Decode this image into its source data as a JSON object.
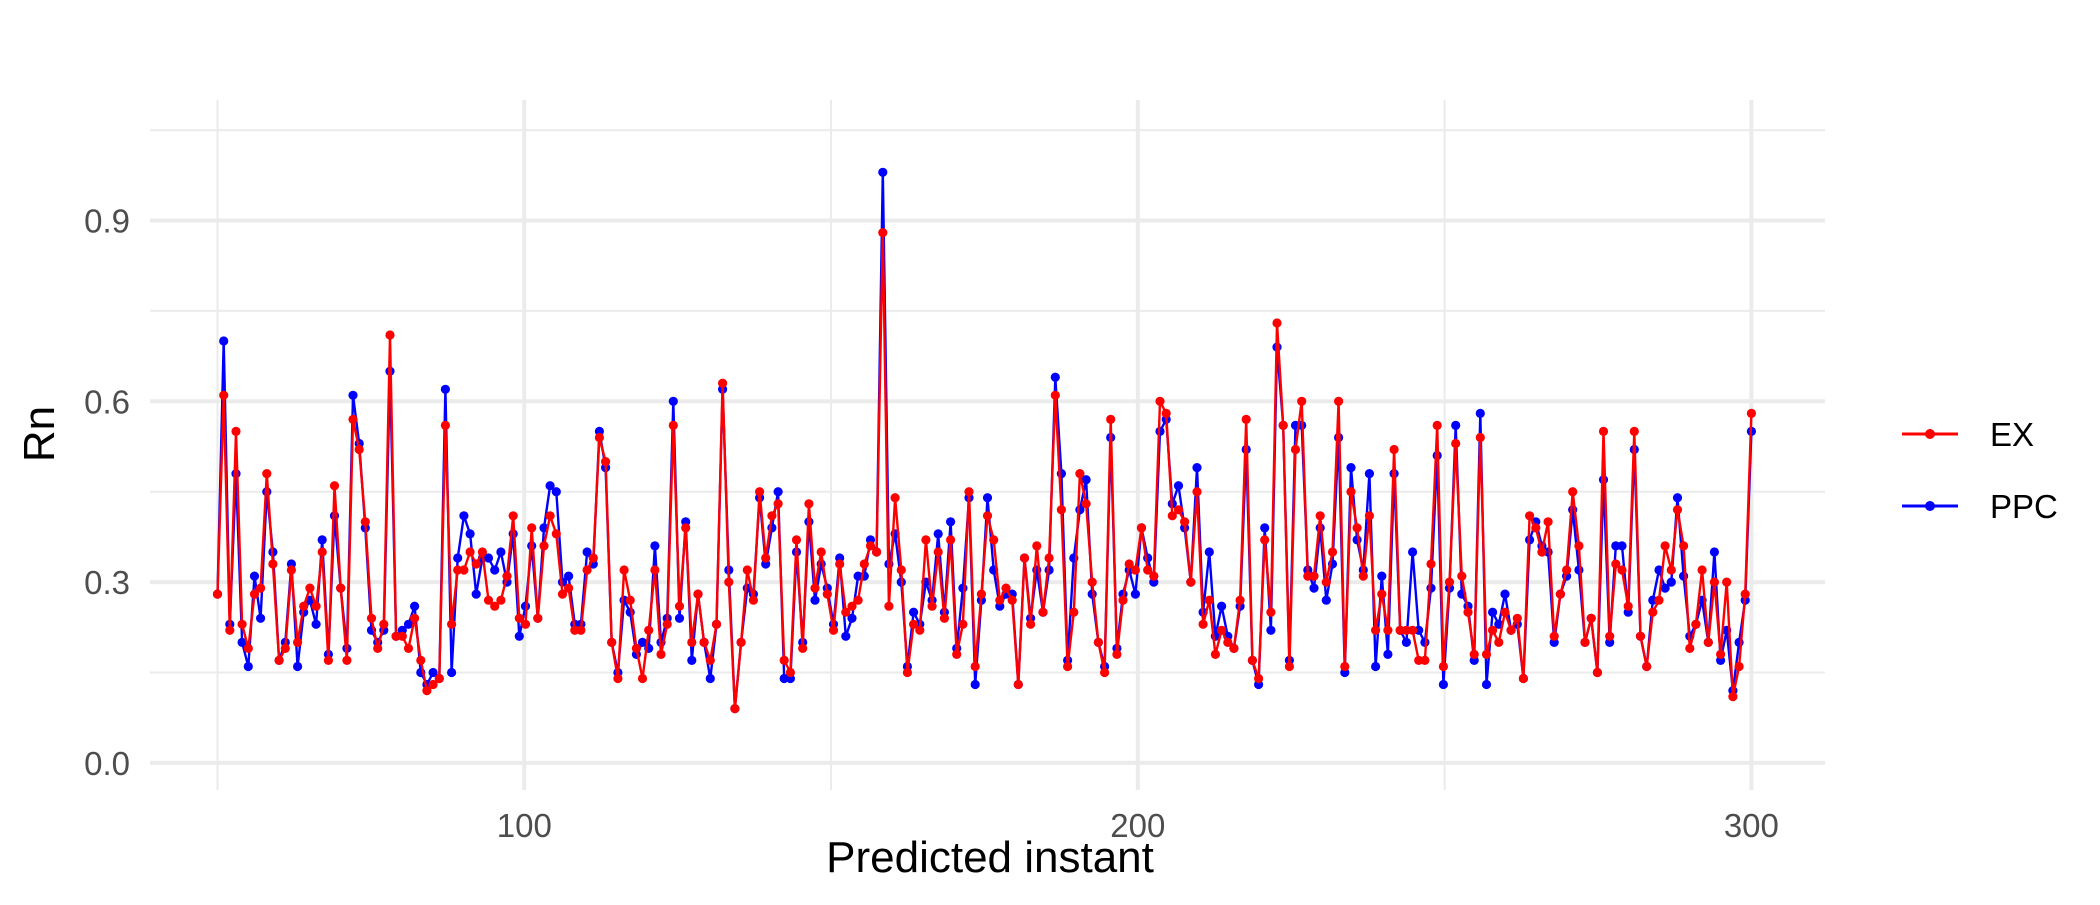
{
  "chart_data": {
    "type": "line",
    "xlabel": "Predicted instant",
    "ylabel": "Rn",
    "xlim": [
      39,
      312
    ],
    "ylim": [
      -0.045,
      1.1
    ],
    "x_ticks": [
      100,
      200,
      300
    ],
    "x_tick_labels": [
      "100",
      "200",
      "300"
    ],
    "y_ticks": [
      0.0,
      0.3,
      0.6,
      0.9
    ],
    "y_tick_labels": [
      "0.0",
      "0.3",
      "0.6",
      "0.9"
    ],
    "grid": true,
    "legend_position": "right",
    "x_start": 50,
    "x_end": 300,
    "series": [
      {
        "name": "EX",
        "color": "#ff0000",
        "values": [
          0.28,
          0.61,
          0.22,
          0.55,
          0.23,
          0.19,
          0.28,
          0.29,
          0.48,
          0.33,
          0.17,
          0.19,
          0.32,
          0.2,
          0.26,
          0.29,
          0.26,
          0.35,
          0.17,
          0.46,
          0.29,
          0.17,
          0.57,
          0.52,
          0.4,
          0.24,
          0.19,
          0.23,
          0.71,
          0.21,
          0.21,
          0.19,
          0.24,
          0.17,
          0.12,
          0.13,
          0.14,
          0.56,
          0.23,
          0.32,
          0.32,
          0.35,
          0.33,
          0.35,
          0.27,
          0.26,
          0.27,
          0.31,
          0.41,
          0.24,
          0.23,
          0.39,
          0.24,
          0.36,
          0.41,
          0.38,
          0.28,
          0.29,
          0.22,
          0.22,
          0.32,
          0.34,
          0.54,
          0.5,
          0.2,
          0.14,
          0.32,
          0.27,
          0.19,
          0.14,
          0.22,
          0.32,
          0.18,
          0.23,
          0.56,
          0.26,
          0.39,
          0.2,
          0.28,
          0.2,
          0.17,
          0.23,
          0.63,
          0.3,
          0.09,
          0.2,
          0.32,
          0.27,
          0.45,
          0.34,
          0.41,
          0.43,
          0.17,
          0.15,
          0.37,
          0.19,
          0.43,
          0.29,
          0.35,
          0.28,
          0.22,
          0.33,
          0.25,
          0.26,
          0.27,
          0.33,
          0.36,
          0.35,
          0.88,
          0.26,
          0.44,
          0.32,
          0.15,
          0.23,
          0.22,
          0.37,
          0.26,
          0.35,
          0.24,
          0.37,
          0.18,
          0.23,
          0.45,
          0.16,
          0.28,
          0.41,
          0.37,
          0.27,
          0.29,
          0.27,
          0.13,
          0.34,
          0.23,
          0.36,
          0.25,
          0.34,
          0.61,
          0.42,
          0.16,
          0.25,
          0.48,
          0.43,
          0.3,
          0.2,
          0.15,
          0.57,
          0.18,
          0.27,
          0.33,
          0.32,
          0.39,
          0.32,
          0.31,
          0.6,
          0.58,
          0.41,
          0.42,
          0.4,
          0.3,
          0.45,
          0.23,
          0.27,
          0.18,
          0.22,
          0.2,
          0.19,
          0.27,
          0.57,
          0.17,
          0.14,
          0.37,
          0.25,
          0.73,
          0.56,
          0.16,
          0.52,
          0.6,
          0.31,
          0.31,
          0.41,
          0.3,
          0.35,
          0.6,
          0.16,
          0.45,
          0.39,
          0.31,
          0.41,
          0.22,
          0.28,
          0.22,
          0.52,
          0.22,
          0.22,
          0.22,
          0.17,
          0.17,
          0.33,
          0.56,
          0.16,
          0.3,
          0.53,
          0.31,
          0.25,
          0.18,
          0.54,
          0.18,
          0.22,
          0.2,
          0.25,
          0.22,
          0.24,
          0.14,
          0.41,
          0.39,
          0.35,
          0.4,
          0.21,
          0.28,
          0.32,
          0.45,
          0.36,
          0.2,
          0.24,
          0.15,
          0.55,
          0.21,
          0.33,
          0.32,
          0.26,
          0.55,
          0.21,
          0.16,
          0.25,
          0.27,
          0.36,
          0.32,
          0.42,
          0.36,
          0.19,
          0.23,
          0.32,
          0.2,
          0.3,
          0.18,
          0.3,
          0.11,
          0.16,
          0.28,
          0.58
        ]
      },
      {
        "name": "PPC",
        "color": "#0000ff",
        "values": [
          0.28,
          0.7,
          0.23,
          0.48,
          0.2,
          0.16,
          0.31,
          0.24,
          0.45,
          0.35,
          0.17,
          0.2,
          0.33,
          0.16,
          0.25,
          0.27,
          0.23,
          0.37,
          0.18,
          0.41,
          0.29,
          0.19,
          0.61,
          0.53,
          0.39,
          0.22,
          0.2,
          0.22,
          0.65,
          0.21,
          0.22,
          0.23,
          0.26,
          0.15,
          0.13,
          0.15,
          0.14,
          0.62,
          0.15,
          0.34,
          0.41,
          0.38,
          0.28,
          0.34,
          0.34,
          0.32,
          0.35,
          0.3,
          0.38,
          0.21,
          0.26,
          0.36,
          0.24,
          0.39,
          0.46,
          0.45,
          0.3,
          0.31,
          0.23,
          0.23,
          0.35,
          0.33,
          0.55,
          0.49,
          0.2,
          0.15,
          0.27,
          0.25,
          0.18,
          0.2,
          0.19,
          0.36,
          0.2,
          0.24,
          0.6,
          0.24,
          0.4,
          0.17,
          0.28,
          0.2,
          0.14,
          0.23,
          0.62,
          0.32,
          0.09,
          0.2,
          0.29,
          0.28,
          0.44,
          0.33,
          0.39,
          0.45,
          0.14,
          0.14,
          0.35,
          0.2,
          0.4,
          0.27,
          0.33,
          0.29,
          0.23,
          0.34,
          0.21,
          0.24,
          0.31,
          0.31,
          0.37,
          0.35,
          0.98,
          0.33,
          0.38,
          0.3,
          0.16,
          0.25,
          0.23,
          0.3,
          0.27,
          0.38,
          0.25,
          0.4,
          0.19,
          0.29,
          0.44,
          0.13,
          0.27,
          0.44,
          0.32,
          0.26,
          0.28,
          0.28,
          0.13,
          0.34,
          0.24,
          0.32,
          0.25,
          0.32,
          0.64,
          0.48,
          0.17,
          0.34,
          0.42,
          0.47,
          0.28,
          0.2,
          0.16,
          0.54,
          0.19,
          0.28,
          0.32,
          0.28,
          0.39,
          0.34,
          0.3,
          0.55,
          0.57,
          0.43,
          0.46,
          0.39,
          0.3,
          0.49,
          0.25,
          0.35,
          0.21,
          0.26,
          0.21,
          0.19,
          0.26,
          0.52,
          0.17,
          0.13,
          0.39,
          0.22,
          0.69,
          0.56,
          0.17,
          0.56,
          0.56,
          0.32,
          0.29,
          0.39,
          0.27,
          0.33,
          0.54,
          0.15,
          0.49,
          0.37,
          0.32,
          0.48,
          0.16,
          0.31,
          0.18,
          0.48,
          0.22,
          0.2,
          0.35,
          0.22,
          0.2,
          0.29,
          0.51,
          0.13,
          0.29,
          0.56,
          0.28,
          0.26,
          0.17,
          0.58,
          0.13,
          0.25,
          0.23,
          0.28,
          0.22,
          0.23,
          0.14,
          0.37,
          0.4,
          0.36,
          0.35,
          0.2,
          0.28,
          0.31,
          0.42,
          0.32,
          0.2,
          0.24,
          0.15,
          0.47,
          0.2,
          0.36,
          0.36,
          0.25,
          0.52,
          0.21,
          0.16,
          0.27,
          0.32,
          0.29,
          0.3,
          0.44,
          0.31,
          0.21,
          0.23,
          0.27,
          0.2,
          0.35,
          0.17,
          0.22,
          0.12,
          0.2,
          0.27,
          0.55
        ]
      }
    ]
  }
}
